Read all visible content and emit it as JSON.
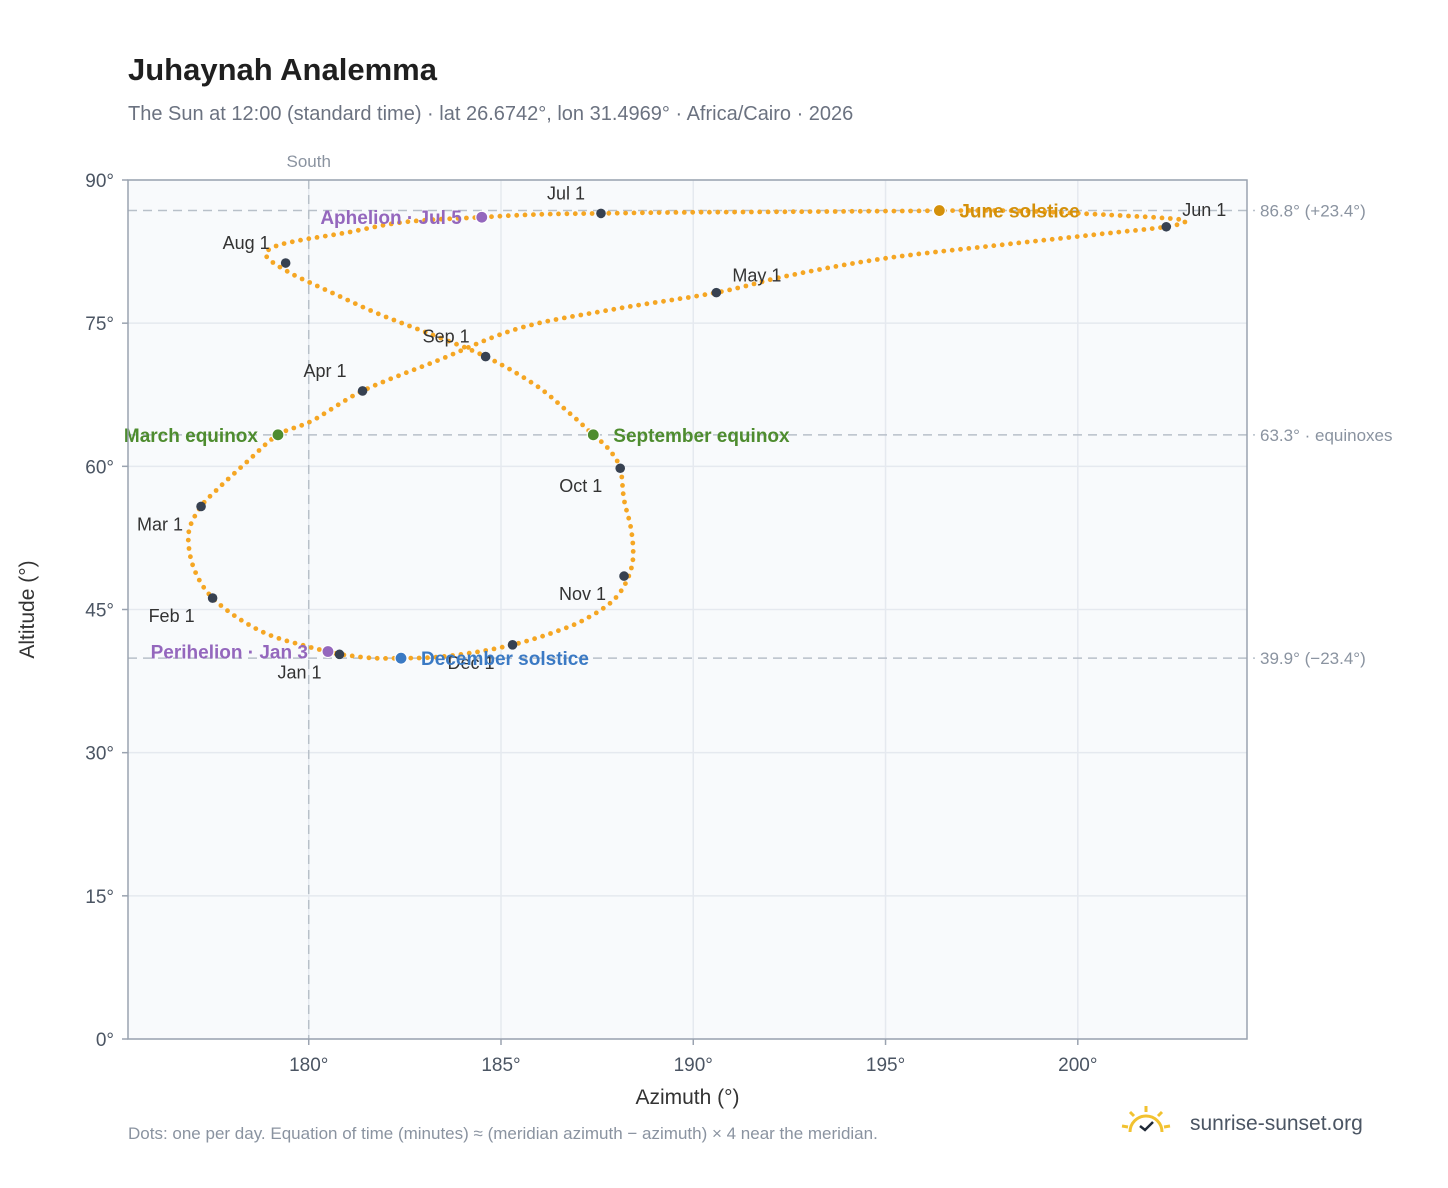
{
  "header": {
    "title": "Juhaynah Analemma",
    "subtitle": "The Sun at 12:00 (standard time) · lat 26.6742°, lon 31.4969° · Africa/Cairo · 2026"
  },
  "footer": {
    "note": "Dots: one per day. Equation of time (minutes) ≈ (meridian azimuth − azimuth) × 4 near the meridian.",
    "brand": "sunrise-sunset.org",
    "brand_icon": "sun-check-icon"
  },
  "colors": {
    "path": "#f5a623",
    "month_marker": "#374151",
    "june": "#d4900a",
    "december": "#3b7ac4",
    "equinox": "#4e8c2f",
    "apsis": "#9467bd",
    "grid": "#e5e9ef",
    "plot_bg": "#f8fafc",
    "frame": "#9aa3b0",
    "ref_line": "#b8c0c9"
  },
  "chart_data": {
    "type": "scatter",
    "xlabel": "Azimuth (°)",
    "ylabel": "Altitude (°)",
    "xlim": [
      175.3,
      204.4
    ],
    "ylim": [
      0,
      90
    ],
    "x_ticks": [
      180,
      185,
      190,
      195,
      200
    ],
    "x_tick_labels": [
      "180°",
      "185°",
      "190°",
      "195°",
      "200°"
    ],
    "y_ticks": [
      0,
      15,
      30,
      45,
      60,
      75,
      90
    ],
    "y_tick_labels": [
      "0°",
      "15°",
      "30°",
      "45°",
      "60°",
      "75°",
      "90°"
    ],
    "grid": true,
    "meridian": {
      "azimuth": 180,
      "label": "South"
    },
    "reference_lines": [
      {
        "altitude": 86.8,
        "label": "86.8° (+23.4°)"
      },
      {
        "altitude": 63.3,
        "label": "63.3° · equinoxes"
      },
      {
        "altitude": 39.9,
        "label": "39.9° (−23.4°)"
      }
    ],
    "path_control_points": [
      [
        180.7,
        40.4
      ],
      [
        181.0,
        40.2
      ],
      [
        181.7,
        39.9
      ],
      [
        182.4,
        39.9
      ],
      [
        183.3,
        40.0
      ],
      [
        184.3,
        40.5
      ],
      [
        185.3,
        41.3
      ],
      [
        186.3,
        42.5
      ],
      [
        187.2,
        44.0
      ],
      [
        188.0,
        46.3
      ],
      [
        188.4,
        49.5
      ],
      [
        188.4,
        53.0
      ],
      [
        188.2,
        56.5
      ],
      [
        188.1,
        59.8
      ],
      [
        187.8,
        61.8
      ],
      [
        187.4,
        63.3
      ],
      [
        186.8,
        65.5
      ],
      [
        185.9,
        68.5
      ],
      [
        184.6,
        71.5
      ],
      [
        183.2,
        73.8
      ],
      [
        181.8,
        76.0
      ],
      [
        180.6,
        78.2
      ],
      [
        179.5,
        80.3
      ],
      [
        178.9,
        82.0
      ],
      [
        179.1,
        83.0
      ],
      [
        179.8,
        83.7
      ],
      [
        181.0,
        84.5
      ],
      [
        182.5,
        85.6
      ],
      [
        184.5,
        86.1
      ],
      [
        186.0,
        86.4
      ],
      [
        187.6,
        86.5
      ],
      [
        189.5,
        86.6
      ],
      [
        191.5,
        86.65
      ],
      [
        193.5,
        86.7
      ],
      [
        195.5,
        86.75
      ],
      [
        196.4,
        86.78
      ],
      [
        198.0,
        86.8
      ],
      [
        199.5,
        86.6
      ],
      [
        201.0,
        86.3
      ],
      [
        202.3,
        86.0
      ],
      [
        202.8,
        85.7
      ],
      [
        202.3,
        85.1
      ],
      [
        200.5,
        84.3
      ],
      [
        198.0,
        83.2
      ],
      [
        195.0,
        81.8
      ],
      [
        192.5,
        80.0
      ],
      [
        190.6,
        78.2
      ],
      [
        188.0,
        76.5
      ],
      [
        185.5,
        74.5
      ],
      [
        183.3,
        71.0
      ],
      [
        181.4,
        67.9
      ],
      [
        180.1,
        64.8
      ],
      [
        179.2,
        63.3
      ],
      [
        178.4,
        60.5
      ],
      [
        177.6,
        57.5
      ],
      [
        177.2,
        55.8
      ],
      [
        176.9,
        53.5
      ],
      [
        176.9,
        51.0
      ],
      [
        177.1,
        48.5
      ],
      [
        177.5,
        46.2
      ],
      [
        178.2,
        44.0
      ],
      [
        179.0,
        42.3
      ],
      [
        179.9,
        41.2
      ],
      [
        180.7,
        40.4
      ]
    ],
    "month_markers": [
      {
        "label": "Jan 1",
        "x": 180.8,
        "y": 40.3,
        "anchor": "below-left"
      },
      {
        "label": "Feb 1",
        "x": 177.5,
        "y": 46.2,
        "anchor": "below-left"
      },
      {
        "label": "Mar 1",
        "x": 177.2,
        "y": 55.8,
        "anchor": "below-left"
      },
      {
        "label": "Apr 1",
        "x": 181.4,
        "y": 67.9,
        "anchor": "above-left"
      },
      {
        "label": "May 1",
        "x": 190.6,
        "y": 78.2,
        "anchor": "above-right"
      },
      {
        "label": "Jun 1",
        "x": 202.3,
        "y": 85.1,
        "anchor": "above-right"
      },
      {
        "label": "Jul 1",
        "x": 187.6,
        "y": 86.5,
        "anchor": "above-left"
      },
      {
        "label": "Aug 1",
        "x": 179.4,
        "y": 81.3,
        "anchor": "above-left"
      },
      {
        "label": "Sep 1",
        "x": 184.6,
        "y": 71.5,
        "anchor": "above-left"
      },
      {
        "label": "Oct 1",
        "x": 188.1,
        "y": 59.8,
        "anchor": "below-left"
      },
      {
        "label": "Nov 1",
        "x": 188.2,
        "y": 48.5,
        "anchor": "below-left"
      },
      {
        "label": "Dec 1",
        "x": 185.3,
        "y": 41.3,
        "anchor": "below-left"
      }
    ],
    "events": [
      {
        "label": "June solstice",
        "x": 196.4,
        "y": 86.8,
        "color": "#d4900a",
        "side": "right"
      },
      {
        "label": "December solstice",
        "x": 182.4,
        "y": 39.9,
        "color": "#3b7ac4",
        "side": "right"
      },
      {
        "label": "March equinox",
        "x": 179.2,
        "y": 63.3,
        "color": "#4e8c2f",
        "side": "left"
      },
      {
        "label": "September equinox",
        "x": 187.4,
        "y": 63.3,
        "color": "#4e8c2f",
        "side": "right"
      },
      {
        "label": "Aphelion · Jul 5",
        "x": 184.5,
        "y": 86.1,
        "color": "#9467bd",
        "side": "left"
      },
      {
        "label": "Perihelion · Jan 3",
        "x": 180.5,
        "y": 40.6,
        "color": "#9467bd",
        "side": "left"
      }
    ]
  }
}
